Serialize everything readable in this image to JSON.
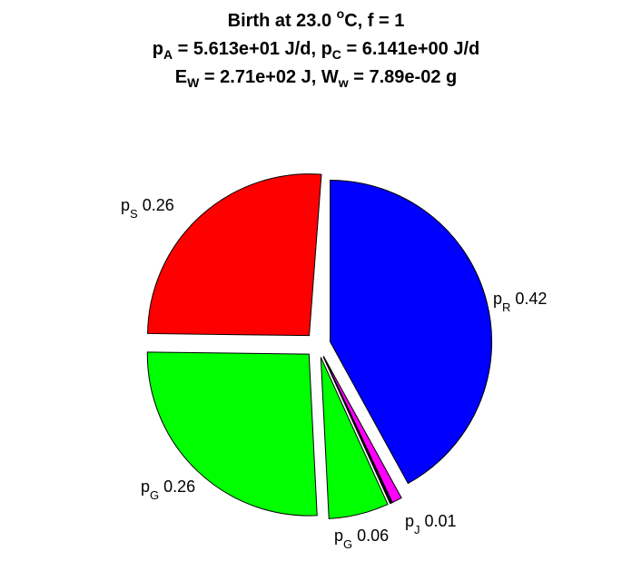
{
  "title": {
    "line1": {
      "pre": "Birth at 23.0 ",
      "sup": "o",
      "post": "C, f = 1"
    },
    "line2": {
      "a": "p",
      "a_sub": "A",
      "a_val": " = 5.613e+01 J/d, ",
      "b": "p",
      "b_sub": "C",
      "b_val": " = 6.141e+00 J/d"
    },
    "line3": {
      "a": "E",
      "a_sub": "W",
      "a_val": " = 2.71e+02 J, ",
      "b": "W",
      "b_sub": "w",
      "b_val": " = 7.89e-02 g"
    }
  },
  "chart_data": {
    "type": "pie",
    "exploded": true,
    "slices": [
      {
        "letter": "p",
        "sub": "R",
        "value_label": "0.42",
        "fraction": 0.42,
        "color": "#0000ff"
      },
      {
        "letter": "p",
        "sub": "J",
        "value_label": "0.01",
        "fraction": 0.01,
        "color": "#ff00ff"
      },
      {
        "letter": "p",
        "sub": "",
        "value_label": "",
        "fraction": 0.002,
        "color": "#000000"
      },
      {
        "letter": "p",
        "sub": "G",
        "value_label": "0.06",
        "fraction": 0.06,
        "color": "#00ff00"
      },
      {
        "letter": "p",
        "sub": "G",
        "value_label": "0.26",
        "fraction": 0.26,
        "color": "#00ff00"
      },
      {
        "letter": "p",
        "sub": "S",
        "value_label": "0.26",
        "fraction": 0.26,
        "color": "#ff0000"
      }
    ]
  }
}
